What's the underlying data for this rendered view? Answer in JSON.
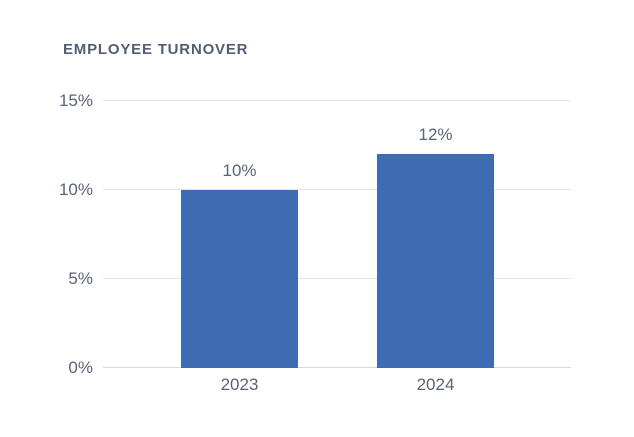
{
  "chart_data": {
    "type": "bar",
    "title": "EMPLOYEE TURNOVER",
    "categories": [
      "2023",
      "2024"
    ],
    "values": [
      10,
      12
    ],
    "value_labels": [
      "10%",
      "12%"
    ],
    "yticks": [
      0,
      5,
      10,
      15
    ],
    "ytick_labels": [
      "0%",
      "5%",
      "10%",
      "15%"
    ],
    "ylim": [
      0,
      15
    ],
    "xlabel": "",
    "ylabel": "",
    "grid": true,
    "legend": false,
    "bar_color": "#3D6CB2",
    "grid_color": "#E4E5EB",
    "axis_color": "#D8DAE2",
    "text_color": "#5A6477",
    "title_color": "#535E72",
    "background_color": "#FFFFFF"
  }
}
